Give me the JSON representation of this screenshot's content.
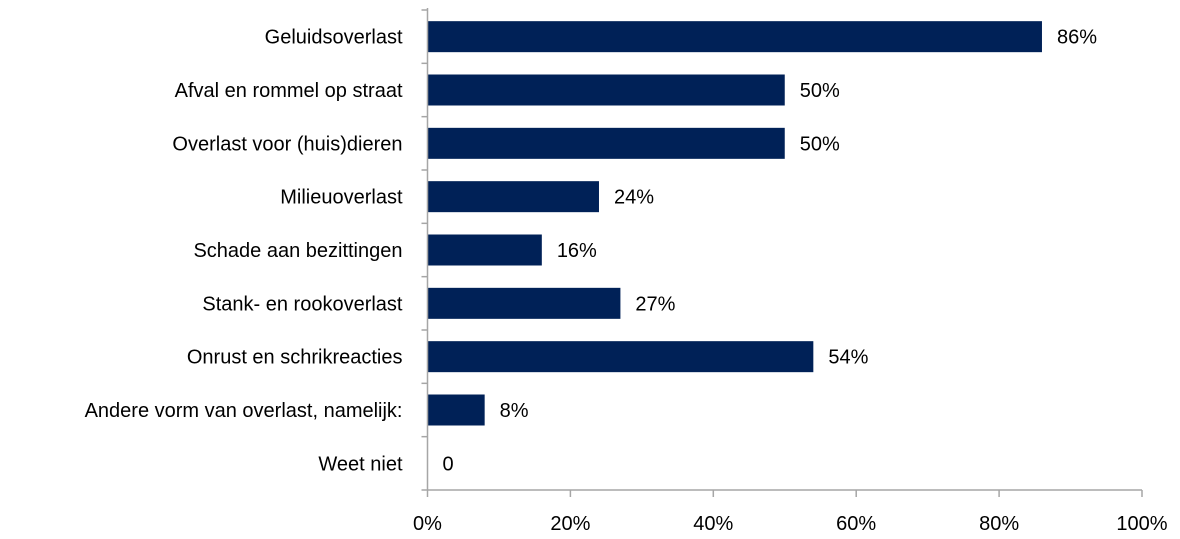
{
  "chart_data": {
    "type": "bar",
    "orientation": "horizontal",
    "categories": [
      "Geluidsoverlast",
      "Afval en rommel op straat",
      "Overlast voor (huis)dieren",
      "Milieuoverlast",
      "Schade aan bezittingen",
      "Stank- en rookoverlast",
      "Onrust en schrikreacties",
      "Andere vorm van overlast, namelijk:",
      "Weet niet"
    ],
    "values": [
      86,
      50,
      50,
      24,
      16,
      27,
      54,
      8,
      0
    ],
    "value_labels": [
      "86%",
      "50%",
      "50%",
      "24%",
      "16%",
      "27%",
      "54%",
      "8%",
      "0"
    ],
    "xlim": [
      0,
      100
    ],
    "x_ticks": [
      0,
      20,
      40,
      60,
      80,
      100
    ],
    "x_tick_labels": [
      "0%",
      "20%",
      "40%",
      "60%",
      "80%",
      "100%"
    ],
    "title": "",
    "xlabel": "",
    "ylabel": "",
    "grid": false,
    "legend": "none",
    "bar_color": "#002157",
    "axis_color": "#a6a6a6"
  }
}
